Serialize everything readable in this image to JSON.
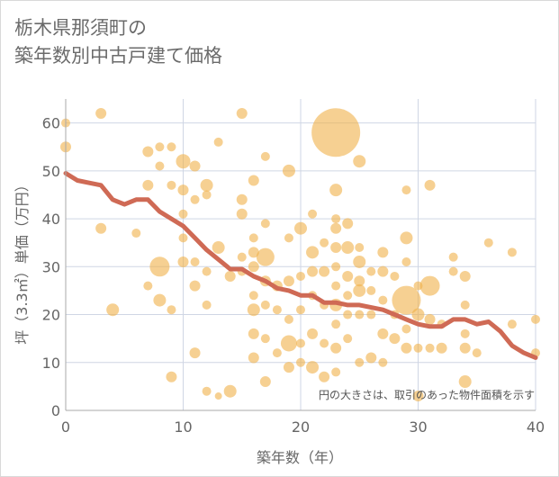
{
  "title_line1": "栃木県那須町の",
  "title_line2": "築年数別中古戸建て価格",
  "note": "円の大きさは、取引のあった物件面積を示す",
  "chart_data": {
    "type": "scatter",
    "xlabel": "築年数（年）",
    "ylabel": "坪（3.3㎡）単価（万円）",
    "xlim": [
      0,
      40
    ],
    "ylim": [
      0,
      65
    ],
    "x_ticks": [
      "0",
      "10",
      "20",
      "30",
      "40"
    ],
    "y_ticks": [
      "0",
      "10",
      "20",
      "30",
      "40",
      "50",
      "60"
    ],
    "grid": true,
    "colors": {
      "bubble": "#f0b04a",
      "trend": "#cf6a55",
      "grid": "#cfd6e4",
      "axis": "#aaaaaa"
    },
    "points": [
      {
        "x": 0,
        "y": 60,
        "s": 5
      },
      {
        "x": 0,
        "y": 55,
        "s": 6
      },
      {
        "x": 3,
        "y": 62,
        "s": 6
      },
      {
        "x": 3,
        "y": 38,
        "s": 6
      },
      {
        "x": 4,
        "y": 21,
        "s": 7
      },
      {
        "x": 6,
        "y": 37,
        "s": 5
      },
      {
        "x": 7,
        "y": 54,
        "s": 6
      },
      {
        "x": 7,
        "y": 47,
        "s": 6
      },
      {
        "x": 7,
        "y": 26,
        "s": 5
      },
      {
        "x": 8,
        "y": 55,
        "s": 5
      },
      {
        "x": 8,
        "y": 51,
        "s": 5
      },
      {
        "x": 8,
        "y": 30,
        "s": 11
      },
      {
        "x": 8,
        "y": 23,
        "s": 7
      },
      {
        "x": 9,
        "y": 55,
        "s": 5
      },
      {
        "x": 9,
        "y": 47,
        "s": 5
      },
      {
        "x": 9,
        "y": 21,
        "s": 5
      },
      {
        "x": 9,
        "y": 7,
        "s": 6
      },
      {
        "x": 10,
        "y": 52,
        "s": 8
      },
      {
        "x": 10,
        "y": 46,
        "s": 6
      },
      {
        "x": 10,
        "y": 41,
        "s": 5
      },
      {
        "x": 10,
        "y": 36,
        "s": 5
      },
      {
        "x": 10,
        "y": 31,
        "s": 6
      },
      {
        "x": 11,
        "y": 51,
        "s": 6
      },
      {
        "x": 11,
        "y": 44,
        "s": 5
      },
      {
        "x": 11,
        "y": 31,
        "s": 5
      },
      {
        "x": 11,
        "y": 26,
        "s": 6
      },
      {
        "x": 11,
        "y": 12,
        "s": 6
      },
      {
        "x": 12,
        "y": 47,
        "s": 7
      },
      {
        "x": 12,
        "y": 45,
        "s": 5
      },
      {
        "x": 12,
        "y": 29,
        "s": 5
      },
      {
        "x": 12,
        "y": 22,
        "s": 5
      },
      {
        "x": 12,
        "y": 4,
        "s": 5
      },
      {
        "x": 13,
        "y": 56,
        "s": 5
      },
      {
        "x": 13,
        "y": 34,
        "s": 7
      },
      {
        "x": 13,
        "y": 3,
        "s": 4
      },
      {
        "x": 14,
        "y": 28,
        "s": 6
      },
      {
        "x": 14,
        "y": 4,
        "s": 7
      },
      {
        "x": 15,
        "y": 62,
        "s": 6
      },
      {
        "x": 15,
        "y": 44,
        "s": 6
      },
      {
        "x": 15,
        "y": 41,
        "s": 6
      },
      {
        "x": 15,
        "y": 32,
        "s": 5
      },
      {
        "x": 15,
        "y": 29,
        "s": 5
      },
      {
        "x": 16,
        "y": 48,
        "s": 6
      },
      {
        "x": 16,
        "y": 36,
        "s": 5
      },
      {
        "x": 16,
        "y": 33,
        "s": 6
      },
      {
        "x": 16,
        "y": 30,
        "s": 6
      },
      {
        "x": 16,
        "y": 24,
        "s": 5
      },
      {
        "x": 16,
        "y": 21,
        "s": 7
      },
      {
        "x": 16,
        "y": 16,
        "s": 6
      },
      {
        "x": 16,
        "y": 11,
        "s": 6
      },
      {
        "x": 17,
        "y": 53,
        "s": 5
      },
      {
        "x": 17,
        "y": 39,
        "s": 5
      },
      {
        "x": 17,
        "y": 32,
        "s": 10
      },
      {
        "x": 17,
        "y": 27,
        "s": 6
      },
      {
        "x": 17,
        "y": 22,
        "s": 5
      },
      {
        "x": 17,
        "y": 15,
        "s": 5
      },
      {
        "x": 17,
        "y": 6,
        "s": 6
      },
      {
        "x": 18,
        "y": 26,
        "s": 6
      },
      {
        "x": 18,
        "y": 21,
        "s": 5
      },
      {
        "x": 18,
        "y": 12,
        "s": 5
      },
      {
        "x": 19,
        "y": 50,
        "s": 7
      },
      {
        "x": 19,
        "y": 36,
        "s": 5
      },
      {
        "x": 19,
        "y": 27,
        "s": 6
      },
      {
        "x": 19,
        "y": 19,
        "s": 5
      },
      {
        "x": 19,
        "y": 14,
        "s": 9
      },
      {
        "x": 19,
        "y": 9,
        "s": 6
      },
      {
        "x": 20,
        "y": 38,
        "s": 7
      },
      {
        "x": 20,
        "y": 28,
        "s": 5
      },
      {
        "x": 20,
        "y": 21,
        "s": 5
      },
      {
        "x": 20,
        "y": 14,
        "s": 5
      },
      {
        "x": 20,
        "y": 10,
        "s": 5
      },
      {
        "x": 21,
        "y": 41,
        "s": 5
      },
      {
        "x": 21,
        "y": 33,
        "s": 7
      },
      {
        "x": 21,
        "y": 29,
        "s": 6
      },
      {
        "x": 21,
        "y": 24,
        "s": 5
      },
      {
        "x": 21,
        "y": 16,
        "s": 6
      },
      {
        "x": 21,
        "y": 9,
        "s": 7
      },
      {
        "x": 22,
        "y": 35,
        "s": 5
      },
      {
        "x": 22,
        "y": 29,
        "s": 6
      },
      {
        "x": 22,
        "y": 22,
        "s": 5
      },
      {
        "x": 22,
        "y": 14,
        "s": 5
      },
      {
        "x": 22,
        "y": 7,
        "s": 6
      },
      {
        "x": 23,
        "y": 58,
        "s": 27
      },
      {
        "x": 23,
        "y": 46,
        "s": 7
      },
      {
        "x": 23,
        "y": 40,
        "s": 5
      },
      {
        "x": 23,
        "y": 38,
        "s": 6
      },
      {
        "x": 23,
        "y": 34,
        "s": 6
      },
      {
        "x": 23,
        "y": 30,
        "s": 5
      },
      {
        "x": 23,
        "y": 26,
        "s": 5
      },
      {
        "x": 23,
        "y": 22,
        "s": 7
      },
      {
        "x": 23,
        "y": 18,
        "s": 5
      },
      {
        "x": 23,
        "y": 13,
        "s": 6
      },
      {
        "x": 23,
        "y": 8,
        "s": 5
      },
      {
        "x": 24,
        "y": 39,
        "s": 6
      },
      {
        "x": 24,
        "y": 34,
        "s": 7
      },
      {
        "x": 24,
        "y": 28,
        "s": 6
      },
      {
        "x": 24,
        "y": 24,
        "s": 5
      },
      {
        "x": 24,
        "y": 20,
        "s": 5
      },
      {
        "x": 24,
        "y": 15,
        "s": 5
      },
      {
        "x": 25,
        "y": 52,
        "s": 7
      },
      {
        "x": 25,
        "y": 34,
        "s": 5
      },
      {
        "x": 25,
        "y": 31,
        "s": 7
      },
      {
        "x": 25,
        "y": 27,
        "s": 6
      },
      {
        "x": 25,
        "y": 25,
        "s": 7
      },
      {
        "x": 25,
        "y": 20,
        "s": 5
      },
      {
        "x": 25,
        "y": 10,
        "s": 5
      },
      {
        "x": 26,
        "y": 29,
        "s": 5
      },
      {
        "x": 26,
        "y": 25,
        "s": 5
      },
      {
        "x": 26,
        "y": 20,
        "s": 5
      },
      {
        "x": 26,
        "y": 11,
        "s": 6
      },
      {
        "x": 27,
        "y": 33,
        "s": 6
      },
      {
        "x": 27,
        "y": 29,
        "s": 6
      },
      {
        "x": 27,
        "y": 23,
        "s": 5
      },
      {
        "x": 27,
        "y": 16,
        "s": 6
      },
      {
        "x": 27,
        "y": 10,
        "s": 5
      },
      {
        "x": 28,
        "y": 28,
        "s": 5
      },
      {
        "x": 28,
        "y": 20,
        "s": 5
      },
      {
        "x": 28,
        "y": 15,
        "s": 6
      },
      {
        "x": 29,
        "y": 46,
        "s": 5
      },
      {
        "x": 29,
        "y": 36,
        "s": 7
      },
      {
        "x": 29,
        "y": 31,
        "s": 5
      },
      {
        "x": 29,
        "y": 23,
        "s": 16
      },
      {
        "x": 29,
        "y": 17,
        "s": 5
      },
      {
        "x": 29,
        "y": 13,
        "s": 6
      },
      {
        "x": 30,
        "y": 26,
        "s": 5
      },
      {
        "x": 30,
        "y": 20,
        "s": 7
      },
      {
        "x": 30,
        "y": 13,
        "s": 5
      },
      {
        "x": 30,
        "y": 3,
        "s": 6
      },
      {
        "x": 31,
        "y": 47,
        "s": 6
      },
      {
        "x": 31,
        "y": 26,
        "s": 11
      },
      {
        "x": 31,
        "y": 19,
        "s": 6
      },
      {
        "x": 31,
        "y": 13,
        "s": 5
      },
      {
        "x": 32,
        "y": 18,
        "s": 5
      },
      {
        "x": 32,
        "y": 13,
        "s": 6
      },
      {
        "x": 33,
        "y": 32,
        "s": 5
      },
      {
        "x": 33,
        "y": 29,
        "s": 5
      },
      {
        "x": 34,
        "y": 28,
        "s": 6
      },
      {
        "x": 34,
        "y": 22,
        "s": 5
      },
      {
        "x": 34,
        "y": 16,
        "s": 5
      },
      {
        "x": 34,
        "y": 13,
        "s": 6
      },
      {
        "x": 34,
        "y": 6,
        "s": 7
      },
      {
        "x": 35,
        "y": 12,
        "s": 5
      },
      {
        "x": 36,
        "y": 35,
        "s": 5
      },
      {
        "x": 38,
        "y": 33,
        "s": 5
      },
      {
        "x": 38,
        "y": 18,
        "s": 5
      },
      {
        "x": 40,
        "y": 19,
        "s": 5
      },
      {
        "x": 40,
        "y": 12,
        "s": 5
      }
    ],
    "trend": [
      [
        0,
        49.5
      ],
      [
        1,
        48
      ],
      [
        2,
        47.5
      ],
      [
        3,
        47
      ],
      [
        4,
        44
      ],
      [
        5,
        43
      ],
      [
        6,
        44
      ],
      [
        7,
        44
      ],
      [
        8,
        41.5
      ],
      [
        9,
        40
      ],
      [
        10,
        38.5
      ],
      [
        11,
        36
      ],
      [
        12,
        33.5
      ],
      [
        13,
        31.5
      ],
      [
        14,
        29.5
      ],
      [
        15,
        29.5
      ],
      [
        16,
        28
      ],
      [
        17,
        27
      ],
      [
        18,
        25.5
      ],
      [
        19,
        25
      ],
      [
        20,
        24
      ],
      [
        21,
        24
      ],
      [
        22,
        22.5
      ],
      [
        23,
        22.5
      ],
      [
        24,
        22
      ],
      [
        25,
        22
      ],
      [
        26,
        21.5
      ],
      [
        27,
        21
      ],
      [
        28,
        20
      ],
      [
        29,
        19
      ],
      [
        30,
        18
      ],
      [
        31,
        17.5
      ],
      [
        32,
        17.5
      ],
      [
        33,
        19
      ],
      [
        34,
        19
      ],
      [
        35,
        18
      ],
      [
        36,
        18.5
      ],
      [
        37,
        16.5
      ],
      [
        38,
        13.5
      ],
      [
        39,
        12
      ],
      [
        40,
        11
      ]
    ]
  }
}
